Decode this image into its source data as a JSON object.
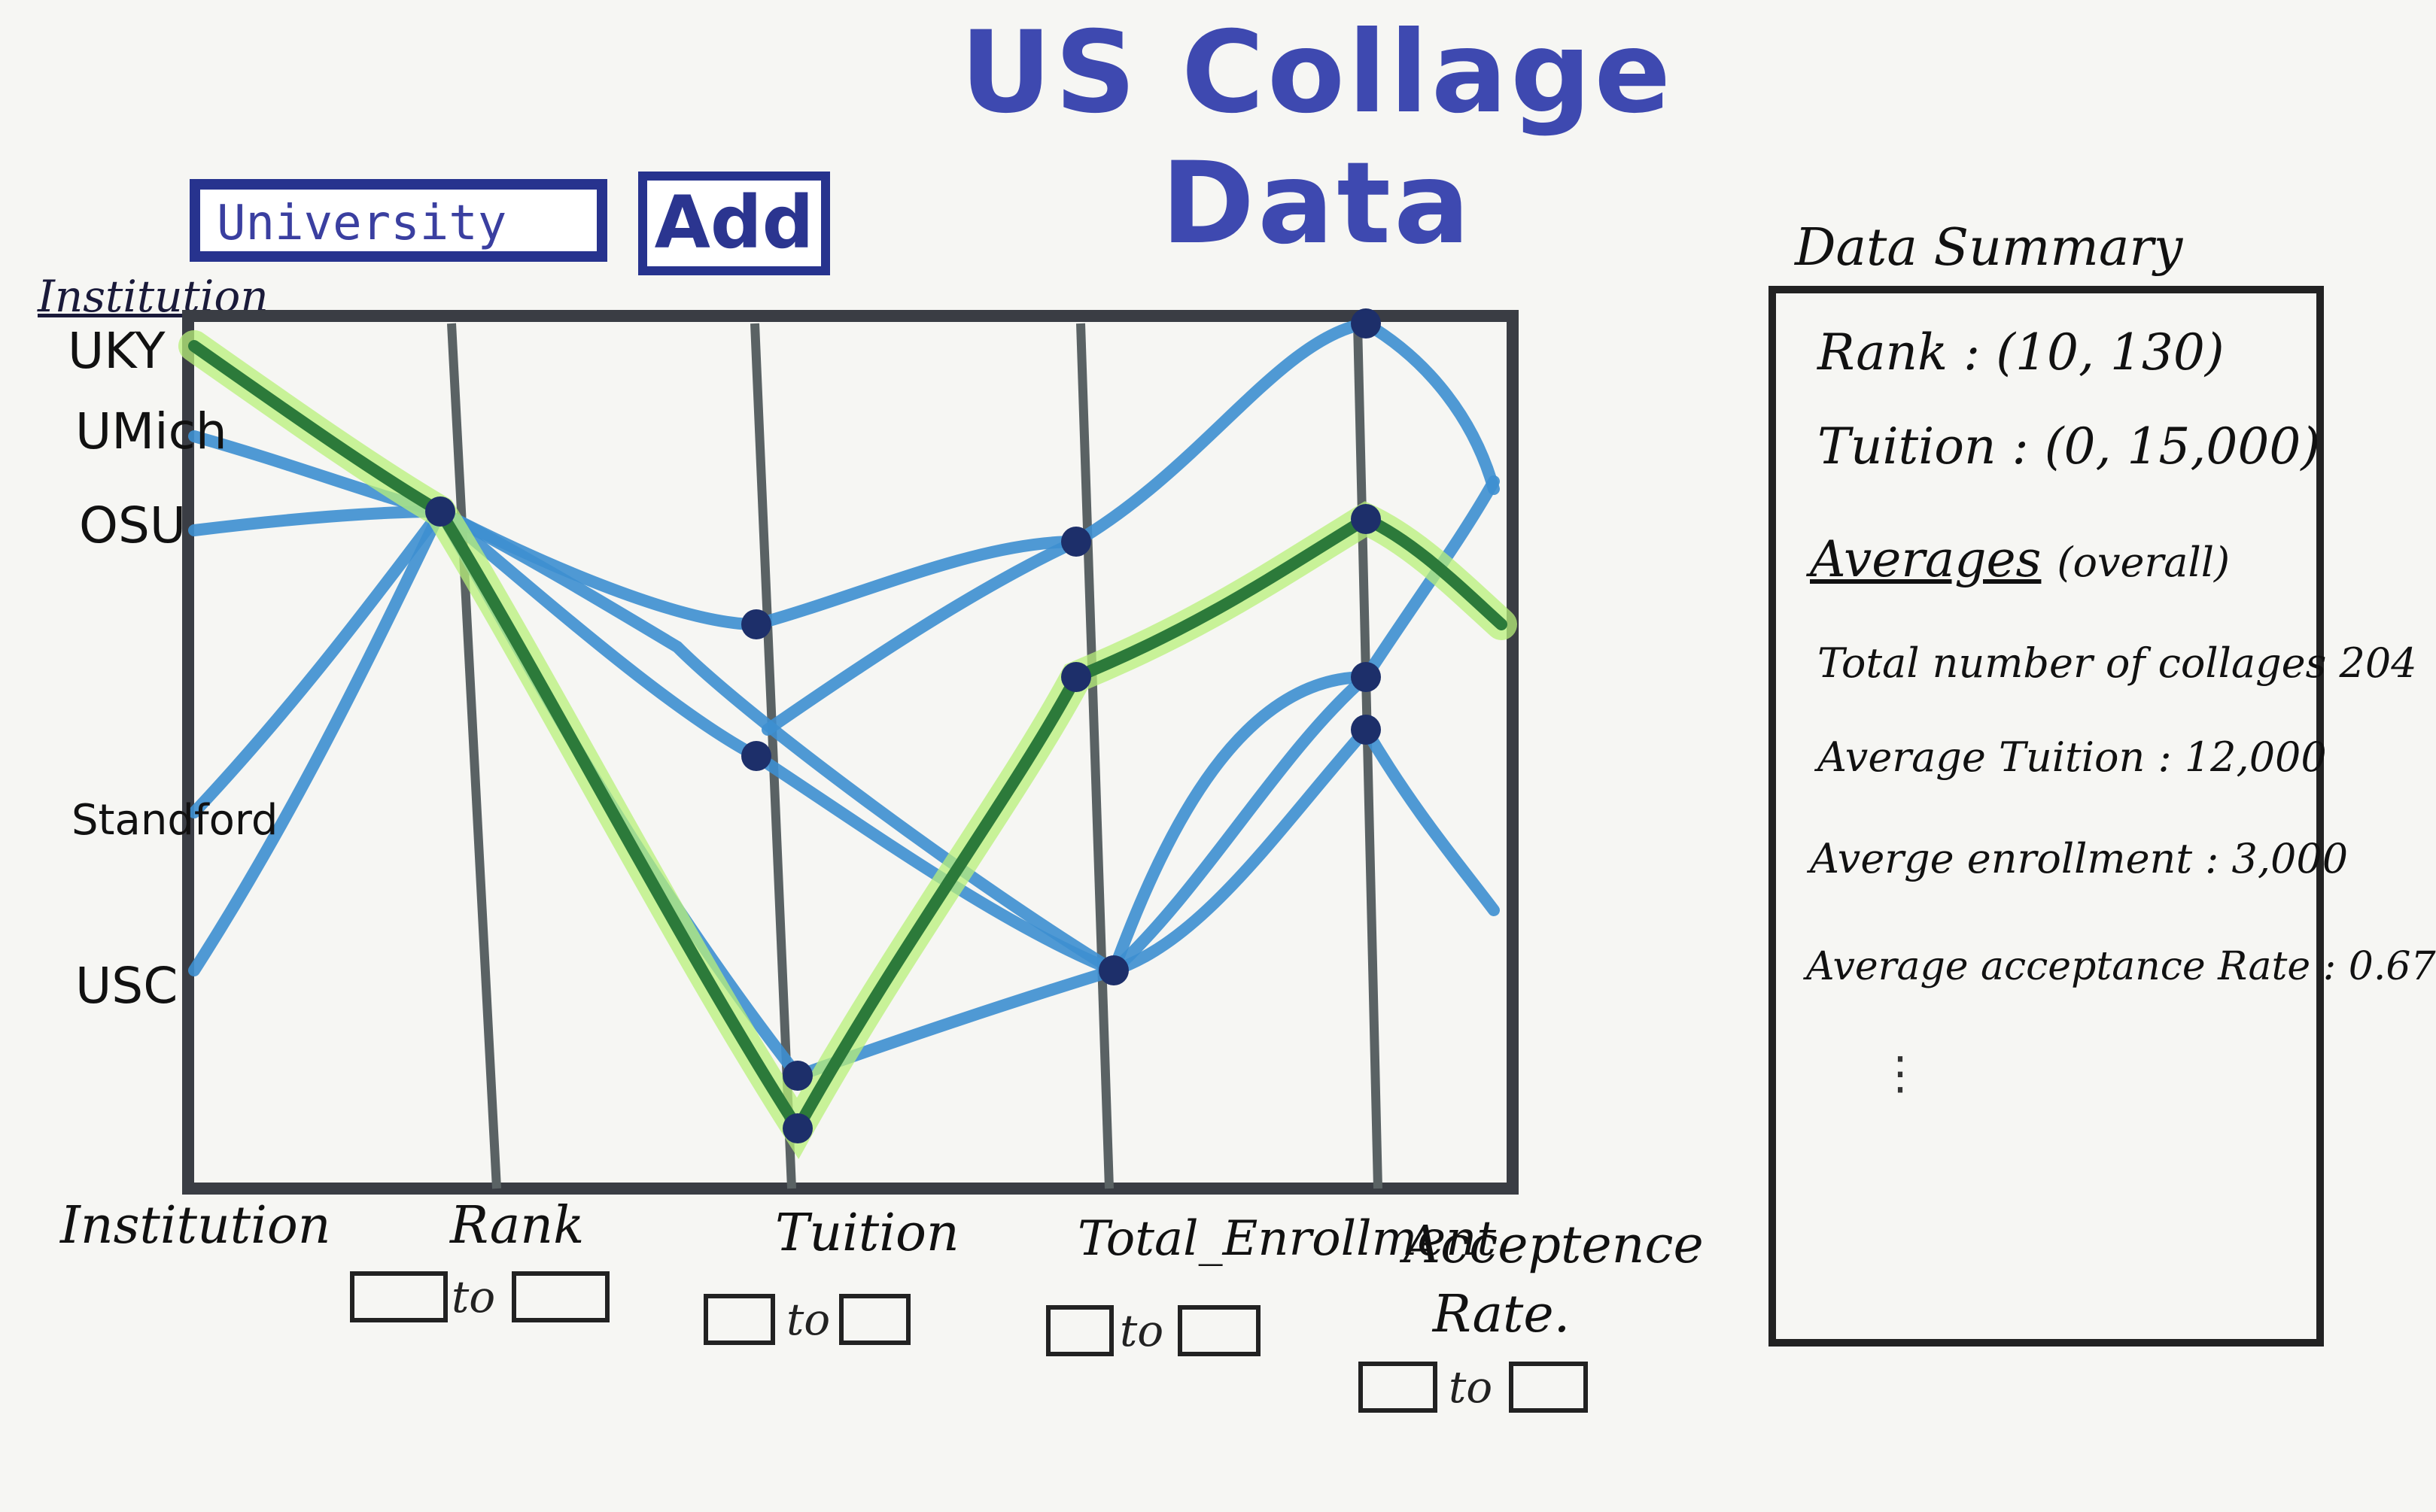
{
  "title": "US Collage Data",
  "search": {
    "value": "University"
  },
  "add_button": "Add",
  "chart_data": {
    "type": "parallel-coordinates",
    "axes": [
      "Institution",
      "Rank",
      "Tuition",
      "Total_Enrollment",
      "Acceptence Rate."
    ],
    "institution_labels": [
      "UKY",
      "UMich",
      "OSU",
      "Standford",
      "USC"
    ],
    "header_label": "Institution"
  },
  "filters": {
    "to": "to"
  },
  "summary": {
    "heading": "Data Summary",
    "rank": "Rank : (10, 130)",
    "tuition": "Tuition : (0, 15,000)",
    "averages": "Averages",
    "averages_note": "(overall)",
    "total": "Total number of collages 204",
    "avg_tuition": "Average Tuition : 12,000",
    "avg_enrollment": "Averge enrollment : 3,000",
    "avg_acceptance": "Average acceptance Rate : 0.67",
    "more": "⋮"
  },
  "colors": {
    "title": "#3e49b0",
    "blue_line": "#3d8fd0",
    "green_line": "#2c7a3a",
    "highlight": "#b8f07a"
  }
}
